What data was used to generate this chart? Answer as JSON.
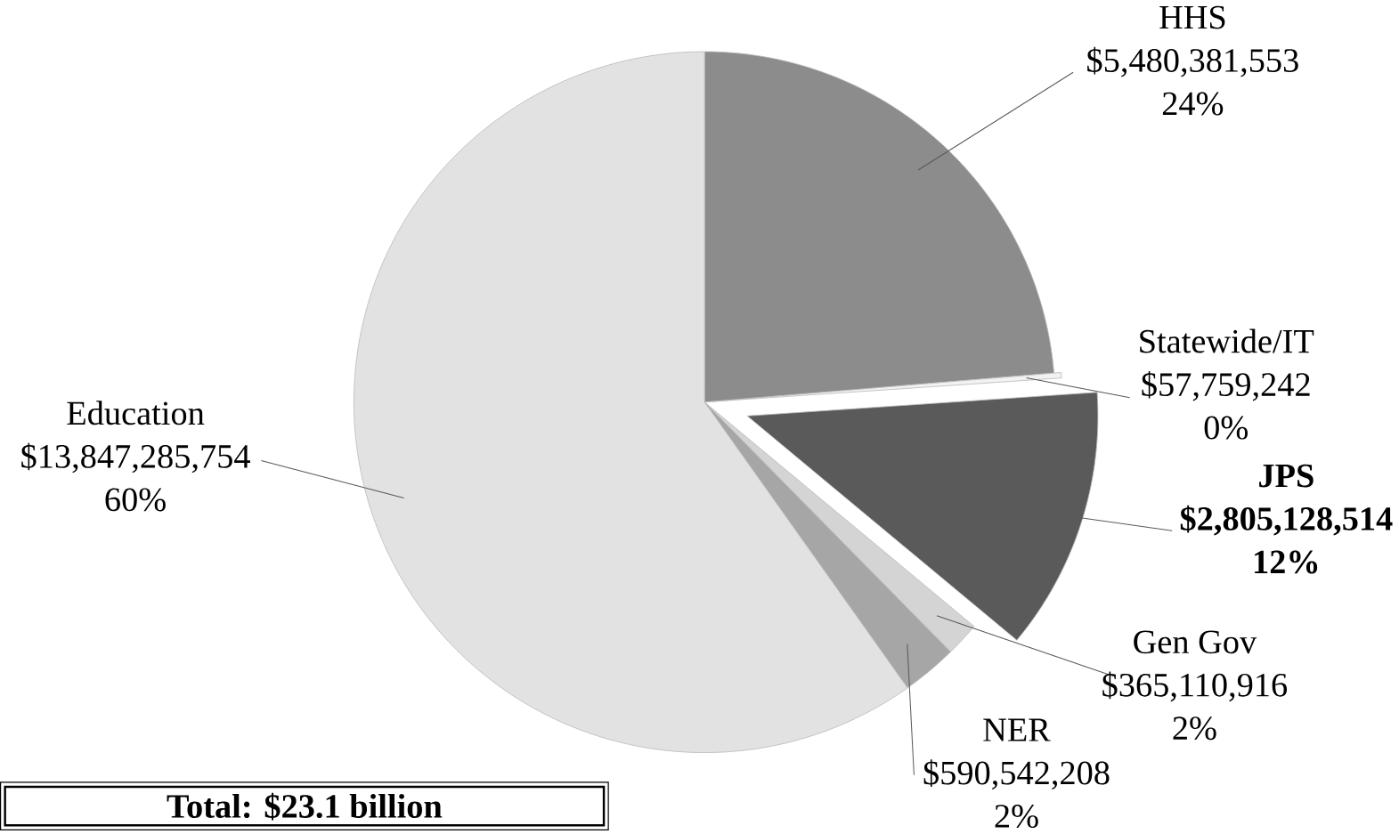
{
  "chart_data": {
    "type": "pie",
    "categories": [
      "HHS",
      "Statewide/IT",
      "JPS",
      "Gen Gov",
      "NER",
      "Education"
    ],
    "values": [
      5480381553,
      57759242,
      2805128514,
      365110916,
      590542208,
      13847285754
    ],
    "value_labels": [
      "$5,480,381,553",
      "$57,759,242",
      "$2,805,128,514",
      "$365,110,916",
      "$590,542,208",
      "$13,847,285,754"
    ],
    "colors": [
      "#8c8c8c",
      "#f2f2f2",
      "#5a5a5a",
      "#d4d4d4",
      "#a6a6a6",
      "#e2e2e2"
    ],
    "annotations": [
      "24%",
      "0%",
      "12%",
      "2%",
      "2%",
      "60%",
      "Total: $23.1 billion"
    ]
  }
}
